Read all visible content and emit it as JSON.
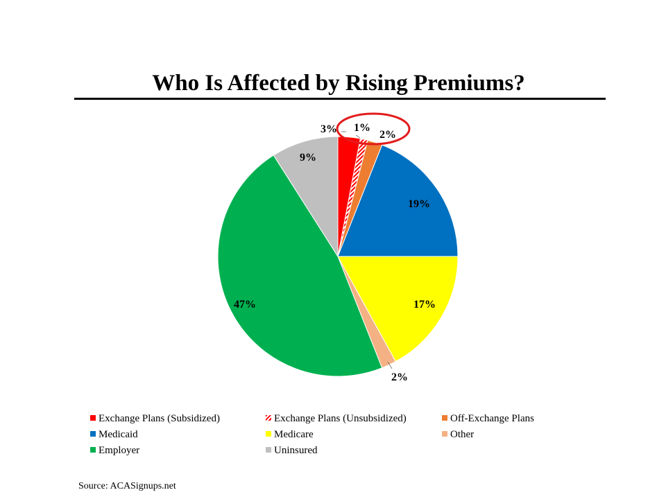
{
  "slide": {
    "title": "Who Is Affected by Rising Premiums?",
    "source": "Source: ACASignups.net"
  },
  "chart_data": {
    "type": "pie",
    "title": "Who Is Affected by Rising Premiums?",
    "start_angle_deg": 0,
    "direction": "clockwise",
    "slices": [
      {
        "name": "Exchange Plans (Subsidized)",
        "value": 3,
        "label": "3%",
        "color": "#ff0000",
        "pattern": "solid"
      },
      {
        "name": "Exchange Plans (Unsubsidized)",
        "value": 1,
        "label": "1%",
        "color": "#ff0000",
        "pattern": "hatch"
      },
      {
        "name": "Off-Exchange Plans",
        "value": 2,
        "label": "2%",
        "color": "#ed7d31",
        "pattern": "solid"
      },
      {
        "name": "Medicaid",
        "value": 19,
        "label": "19%",
        "color": "#0070c0",
        "pattern": "solid"
      },
      {
        "name": "Medicare",
        "value": 17,
        "label": "17%",
        "color": "#ffff00",
        "pattern": "solid"
      },
      {
        "name": "Other",
        "value": 2,
        "label": "2%",
        "color": "#f4b183",
        "pattern": "solid"
      },
      {
        "name": "Employer",
        "value": 47,
        "label": "47%",
        "color": "#00b050",
        "pattern": "solid"
      },
      {
        "name": "Uninsured",
        "value": 9,
        "label": "9%",
        "color": "#bfbfbf",
        "pattern": "solid"
      }
    ],
    "legend_position": "bottom",
    "highlight": "red circle around the 1% and 2% labels"
  }
}
